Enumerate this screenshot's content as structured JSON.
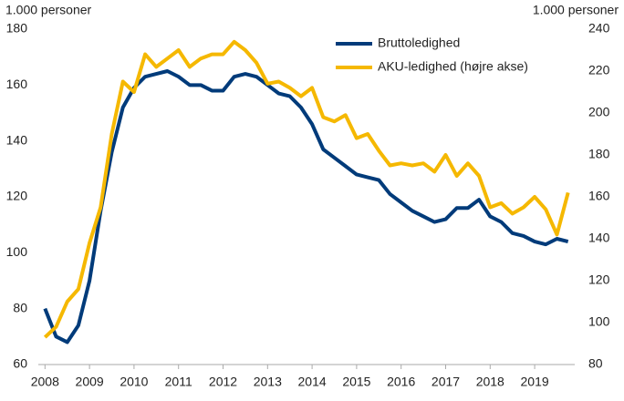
{
  "chart_data": {
    "type": "line",
    "ylabel": "1.000 personer",
    "y2label": "1.000 personer",
    "x": [
      2008,
      2008.25,
      2008.5,
      2008.75,
      2009,
      2009.25,
      2009.5,
      2009.75,
      2010,
      2010.25,
      2010.5,
      2010.75,
      2011,
      2011.25,
      2011.5,
      2011.75,
      2012,
      2012.25,
      2012.5,
      2012.75,
      2013,
      2013.25,
      2013.5,
      2013.75,
      2014,
      2014.25,
      2014.5,
      2014.75,
      2015,
      2015.25,
      2015.5,
      2015.75,
      2016,
      2016.25,
      2016.5,
      2016.75,
      2017,
      2017.25,
      2017.5,
      2017.75,
      2018,
      2018.25,
      2018.5,
      2018.75,
      2019,
      2019.25,
      2019.5,
      2019.75
    ],
    "series": [
      {
        "name": "Bruttoledighed",
        "color": "#003b7a",
        "values": [
          80,
          70,
          68,
          74,
          90,
          115,
          136,
          152,
          159,
          163,
          164,
          165,
          163,
          160,
          160,
          158,
          158,
          163,
          164,
          163,
          160,
          157,
          156,
          152,
          146,
          137,
          134,
          131,
          128,
          127,
          126,
          121,
          118,
          115,
          113,
          111,
          112,
          116,
          116,
          119,
          113,
          111,
          107,
          106,
          104,
          103,
          105,
          104
        ]
      },
      {
        "name": "AKU-ledighed (højre akse)",
        "color": "#f5b800",
        "axis": "y2",
        "values": [
          93,
          98,
          110,
          116,
          138,
          155,
          190,
          215,
          210,
          228,
          222,
          226,
          230,
          222,
          226,
          228,
          228,
          234,
          230,
          224,
          214,
          215,
          212,
          208,
          212,
          198,
          196,
          199,
          188,
          190,
          182,
          175,
          176,
          175,
          176,
          172,
          180,
          170,
          176,
          170,
          155,
          157,
          152,
          155,
          160,
          154,
          142,
          162
        ]
      }
    ],
    "xlim": [
      2007.85,
      2019.9
    ],
    "xticks": [
      2008,
      2009,
      2010,
      2011,
      2012,
      2013,
      2014,
      2015,
      2016,
      2017,
      2018,
      2019
    ],
    "ylim": [
      60,
      180
    ],
    "yticks": [
      60,
      80,
      100,
      120,
      140,
      160,
      180
    ],
    "y2lim": [
      80,
      240
    ],
    "y2ticks": [
      80,
      100,
      120,
      140,
      160,
      180,
      200,
      220,
      240
    ],
    "legend": "upper right"
  }
}
